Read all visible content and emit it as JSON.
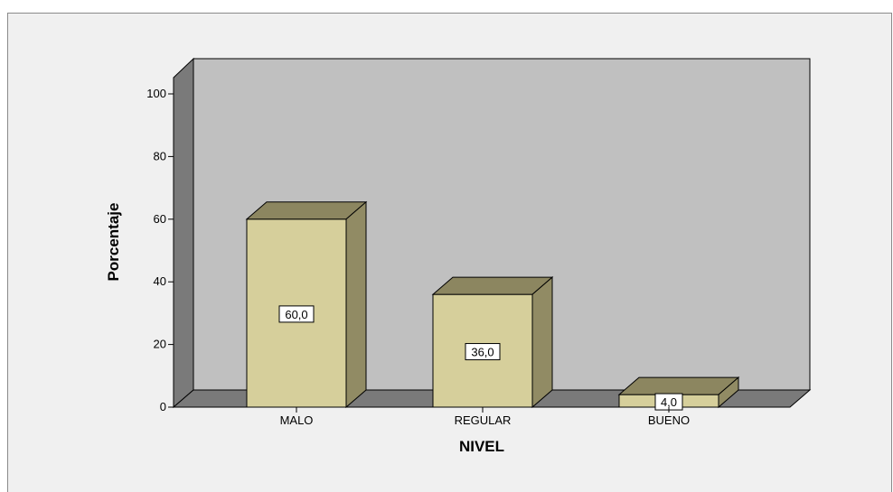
{
  "chart_data": {
    "type": "bar",
    "style": "3d",
    "categories": [
      "MALO",
      "REGULAR",
      "BUENO"
    ],
    "values": [
      60.0,
      36.0,
      4.0
    ],
    "value_labels": [
      "60,0",
      "36,0",
      "4,0"
    ],
    "xlabel": "NIVEL",
    "ylabel": "Porcentaje",
    "ylim": [
      0,
      100
    ],
    "yticks": [
      "0",
      "20",
      "40",
      "60",
      "80",
      "100"
    ],
    "grid": false,
    "legend": "none",
    "colors": {
      "back_wall": "#c0c0c0",
      "side_wall": "#7a7a7a",
      "floor": "#7a7a7a",
      "bar_front": "#d6cf9b",
      "bar_top": "#8c8660",
      "bar_side": "#918b64",
      "outline": "#000000",
      "frame_background": "#f0f0f0"
    }
  }
}
